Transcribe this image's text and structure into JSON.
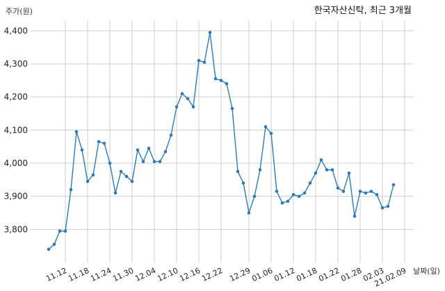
{
  "chart_data": {
    "type": "line",
    "title": "한국자산신탁, 최근 3개월",
    "ylabel": "주가(원)",
    "xlabel": "날짜(일)",
    "ylim": [
      3700,
      4430
    ],
    "yticks": [
      3800,
      3900,
      4000,
      4100,
      4200,
      4300,
      4400
    ],
    "ytick_labels": [
      "3,800",
      "3,900",
      "4,000",
      "4,100",
      "4,200",
      "4,300",
      "4,400"
    ],
    "xticks": [
      {
        "index": 3,
        "label": "11.12"
      },
      {
        "index": 7,
        "label": "11.18"
      },
      {
        "index": 11,
        "label": "11.24"
      },
      {
        "index": 15,
        "label": "11.30"
      },
      {
        "index": 19,
        "label": "12.04"
      },
      {
        "index": 23,
        "label": "12.10"
      },
      {
        "index": 27,
        "label": "12.16"
      },
      {
        "index": 31,
        "label": "12.22"
      },
      {
        "index": 36,
        "label": "12.29"
      },
      {
        "index": 40,
        "label": "01.06"
      },
      {
        "index": 44,
        "label": "01.12"
      },
      {
        "index": 48,
        "label": "01.18"
      },
      {
        "index": 52,
        "label": "01.22"
      },
      {
        "index": 56,
        "label": "01.28"
      },
      {
        "index": 60,
        "label": "02.03"
      },
      {
        "index": 64,
        "label": "21.02.09"
      }
    ],
    "grid": true,
    "series": [
      {
        "color": "#2e7bb4",
        "values": [
          3740,
          3755,
          3795,
          3795,
          3920,
          4095,
          4040,
          3945,
          3965,
          4065,
          4060,
          4000,
          3910,
          3975,
          3960,
          3945,
          4040,
          4005,
          4045,
          4005,
          4005,
          4035,
          4085,
          4170,
          4210,
          4195,
          4170,
          4310,
          4305,
          4395,
          4255,
          4250,
          4240,
          4165,
          3975,
          3940,
          3850,
          3900,
          3980,
          4110,
          4090,
          3915,
          3880,
          3885,
          3905,
          3900,
          3910,
          3940,
          3970,
          4010,
          3980,
          3980,
          3925,
          3915,
          3970,
          3840,
          3915,
          3910,
          3915,
          3905,
          3865,
          3870,
          3935
        ]
      }
    ]
  }
}
